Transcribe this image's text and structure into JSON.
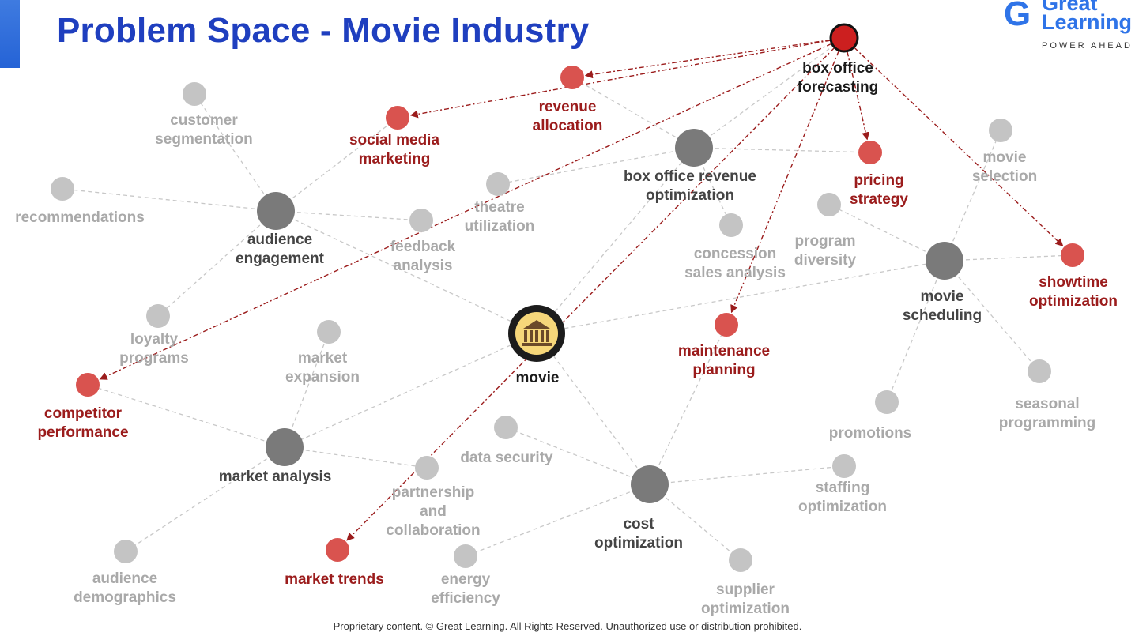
{
  "header": {
    "title": "Problem Space - Movie Industry"
  },
  "brand": {
    "logo_text": "Great\nLearning",
    "tagline": "POWER AHEAD",
    "color": "#2f74e8"
  },
  "footer": {
    "text": "Proprietary content. © Great Learning. All Rights Reserved. Unauthorized use or distribution prohibited."
  },
  "colors": {
    "title": "#1f3fbf",
    "highlight": "#9b1c1c",
    "hub": "#7a7a7a",
    "leaf": "#c4c4c4",
    "target_node": "#d9534f",
    "source_node": "#cc1f1f"
  },
  "diagram": {
    "nodes": [
      {
        "id": "box-office-forecasting",
        "lines": [
          "box office",
          "forecasting"
        ],
        "kind": "source"
      },
      {
        "id": "movie",
        "lines": [
          "movie"
        ],
        "kind": "center",
        "icon": "cinema-icon"
      },
      {
        "id": "revenue-allocation",
        "lines": [
          "revenue",
          "allocation"
        ],
        "kind": "target"
      },
      {
        "id": "social-media-marketing",
        "lines": [
          "social media",
          "marketing"
        ],
        "kind": "target"
      },
      {
        "id": "pricing-strategy",
        "lines": [
          "pricing",
          "strategy"
        ],
        "kind": "target"
      },
      {
        "id": "showtime-optimization",
        "lines": [
          "showtime",
          "optimization"
        ],
        "kind": "target"
      },
      {
        "id": "maintenance-planning",
        "lines": [
          "maintenance",
          "planning"
        ],
        "kind": "target"
      },
      {
        "id": "competitor-performance",
        "lines": [
          "competitor",
          "performance"
        ],
        "kind": "target"
      },
      {
        "id": "market-trends",
        "lines": [
          "market trends"
        ],
        "kind": "target"
      },
      {
        "id": "audience-engagement",
        "lines": [
          "audience",
          "engagement"
        ],
        "kind": "hub"
      },
      {
        "id": "box-office-revenue-optimization",
        "lines": [
          "box office revenue",
          "optimization"
        ],
        "kind": "hub"
      },
      {
        "id": "movie-scheduling",
        "lines": [
          "movie",
          "scheduling"
        ],
        "kind": "hub"
      },
      {
        "id": "market-analysis",
        "lines": [
          "market analysis"
        ],
        "kind": "hub"
      },
      {
        "id": "cost-optimization",
        "lines": [
          "cost",
          "optimization"
        ],
        "kind": "hub"
      },
      {
        "id": "customer-segmentation",
        "lines": [
          "customer",
          "segmentation"
        ],
        "kind": "leaf"
      },
      {
        "id": "recommendations",
        "lines": [
          "recommendations"
        ],
        "kind": "leaf"
      },
      {
        "id": "feedback-analysis",
        "lines": [
          "feedback",
          "analysis"
        ],
        "kind": "leaf"
      },
      {
        "id": "loyalty-programs",
        "lines": [
          "loyalty",
          "programs"
        ],
        "kind": "leaf"
      },
      {
        "id": "theatre-utilization",
        "lines": [
          "theatre",
          "utilization"
        ],
        "kind": "leaf"
      },
      {
        "id": "concession-sales-analysis",
        "lines": [
          "concession",
          "sales analysis"
        ],
        "kind": "leaf"
      },
      {
        "id": "movie-selection",
        "lines": [
          "movie",
          "selection"
        ],
        "kind": "leaf"
      },
      {
        "id": "program-diversity",
        "lines": [
          "program",
          "diversity"
        ],
        "kind": "leaf"
      },
      {
        "id": "seasonal-programming",
        "lines": [
          "seasonal",
          "programming"
        ],
        "kind": "leaf"
      },
      {
        "id": "promotions",
        "lines": [
          "promotions"
        ],
        "kind": "leaf"
      },
      {
        "id": "market-expansion",
        "lines": [
          "market",
          "expansion"
        ],
        "kind": "leaf"
      },
      {
        "id": "audience-demographics",
        "lines": [
          "audience",
          "demographics"
        ],
        "kind": "leaf"
      },
      {
        "id": "partnership-collaboration",
        "lines": [
          "partnership",
          "and",
          "collaboration"
        ],
        "kind": "leaf"
      },
      {
        "id": "data-security",
        "lines": [
          "data security"
        ],
        "kind": "leaf"
      },
      {
        "id": "energy-efficiency",
        "lines": [
          "energy",
          "efficiency"
        ],
        "kind": "leaf"
      },
      {
        "id": "supplier-optimization",
        "lines": [
          "supplier",
          "optimization"
        ],
        "kind": "leaf"
      },
      {
        "id": "staffing-optimization",
        "lines": [
          "staffing",
          "optimization"
        ],
        "kind": "leaf"
      }
    ],
    "edges": [
      [
        "movie",
        "audience-engagement"
      ],
      [
        "movie",
        "box-office-revenue-optimization"
      ],
      [
        "movie",
        "movie-scheduling"
      ],
      [
        "movie",
        "market-analysis"
      ],
      [
        "movie",
        "cost-optimization"
      ],
      [
        "audience-engagement",
        "customer-segmentation"
      ],
      [
        "audience-engagement",
        "recommendations"
      ],
      [
        "audience-engagement",
        "feedback-analysis"
      ],
      [
        "audience-engagement",
        "loyalty-programs"
      ],
      [
        "audience-engagement",
        "social-media-marketing"
      ],
      [
        "box-office-revenue-optimization",
        "revenue-allocation"
      ],
      [
        "box-office-revenue-optimization",
        "theatre-utilization"
      ],
      [
        "box-office-revenue-optimization",
        "concession-sales-analysis"
      ],
      [
        "box-office-revenue-optimization",
        "pricing-strategy"
      ],
      [
        "box-office-revenue-optimization",
        "box-office-forecasting"
      ],
      [
        "movie-scheduling",
        "movie-selection"
      ],
      [
        "movie-scheduling",
        "program-diversity"
      ],
      [
        "movie-scheduling",
        "showtime-optimization"
      ],
      [
        "movie-scheduling",
        "seasonal-programming"
      ],
      [
        "movie-scheduling",
        "promotions"
      ],
      [
        "market-analysis",
        "market-expansion"
      ],
      [
        "market-analysis",
        "competitor-performance"
      ],
      [
        "market-analysis",
        "partnership-collaboration"
      ],
      [
        "market-analysis",
        "audience-demographics"
      ],
      [
        "cost-optimization",
        "data-security"
      ],
      [
        "cost-optimization",
        "energy-efficiency"
      ],
      [
        "cost-optimization",
        "supplier-optimization"
      ],
      [
        "cost-optimization",
        "staffing-optimization"
      ],
      [
        "cost-optimization",
        "maintenance-planning"
      ]
    ],
    "arrows": [
      [
        "box-office-forecasting",
        "revenue-allocation"
      ],
      [
        "box-office-forecasting",
        "social-media-marketing"
      ],
      [
        "box-office-forecasting",
        "pricing-strategy"
      ],
      [
        "box-office-forecasting",
        "showtime-optimization"
      ],
      [
        "box-office-forecasting",
        "maintenance-planning"
      ],
      [
        "box-office-forecasting",
        "competitor-performance"
      ],
      [
        "box-office-forecasting",
        "market-trends"
      ]
    ]
  }
}
